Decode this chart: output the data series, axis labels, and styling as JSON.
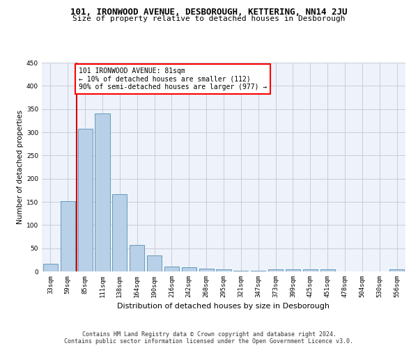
{
  "title1": "101, IRONWOOD AVENUE, DESBOROUGH, KETTERING, NN14 2JU",
  "title2": "Size of property relative to detached houses in Desborough",
  "xlabel": "Distribution of detached houses by size in Desborough",
  "ylabel": "Number of detached properties",
  "categories": [
    "33sqm",
    "59sqm",
    "85sqm",
    "111sqm",
    "138sqm",
    "164sqm",
    "190sqm",
    "216sqm",
    "242sqm",
    "268sqm",
    "295sqm",
    "321sqm",
    "347sqm",
    "373sqm",
    "399sqm",
    "425sqm",
    "451sqm",
    "478sqm",
    "504sqm",
    "530sqm",
    "556sqm"
  ],
  "values": [
    16,
    152,
    307,
    340,
    167,
    57,
    35,
    10,
    9,
    6,
    4,
    2,
    2,
    5,
    5,
    5,
    5,
    0,
    0,
    0,
    4
  ],
  "bar_color": "#b8d0e8",
  "bar_edge_color": "#6699bb",
  "red_line_index": 2,
  "annotation_text": "101 IRONWOOD AVENUE: 81sqm\n← 10% of detached houses are smaller (112)\n90% of semi-detached houses are larger (977) →",
  "annotation_box_color": "white",
  "annotation_box_edge_color": "red",
  "red_line_color": "#cc0000",
  "ylim": [
    0,
    450
  ],
  "yticks": [
    0,
    50,
    100,
    150,
    200,
    250,
    300,
    350,
    400,
    450
  ],
  "footer_line1": "Contains HM Land Registry data © Crown copyright and database right 2024.",
  "footer_line2": "Contains public sector information licensed under the Open Government Licence v3.0.",
  "background_color": "#eef2fa",
  "grid_color": "#c8ccd8",
  "title1_fontsize": 9,
  "title2_fontsize": 8,
  "xlabel_fontsize": 8,
  "ylabel_fontsize": 7.5,
  "tick_fontsize": 6.5,
  "annotation_fontsize": 7,
  "footer_fontsize": 6
}
